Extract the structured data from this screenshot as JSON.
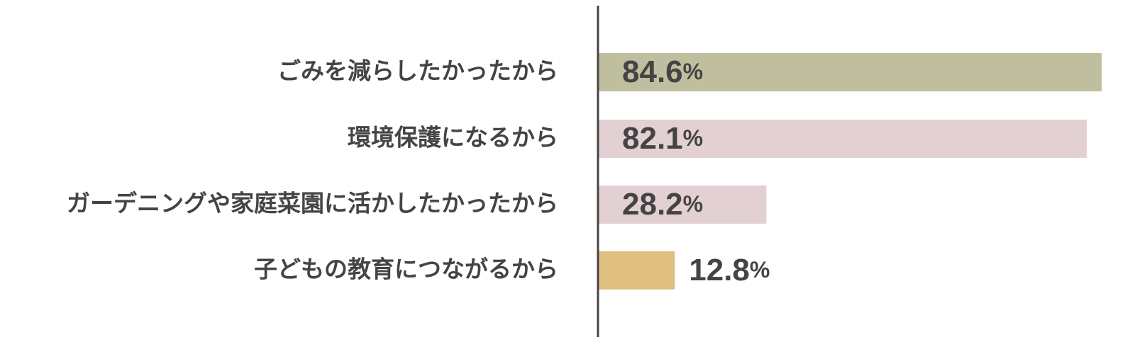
{
  "chart_data": {
    "type": "hbar",
    "categories": [
      "ごみを減らしたかったから",
      "環境保護になるから",
      "ガーデニングや家庭菜園に活かしたかったから",
      "子どもの教育につながるから"
    ],
    "values": [
      84.6,
      82.1,
      28.2,
      12.8
    ],
    "value_labels": [
      "84.6%",
      "82.1%",
      "28.2%",
      "12.8%"
    ],
    "colors": [
      "#bfbf9f",
      "#e3d0d2",
      "#e3d0d2",
      "#e0c080"
    ]
  }
}
